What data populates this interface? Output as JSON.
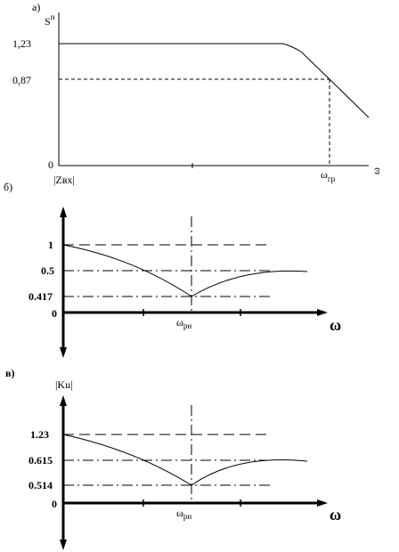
{
  "chart_data": [
    {
      "panel_label": "а)",
      "type": "line",
      "ylabel": "S",
      "ylabel_sup": "н",
      "xlabel": "ω",
      "x_label_below_origin": "|Zвх|",
      "ytick_labels": [
        "1,23",
        "0,87",
        "0"
      ],
      "xtick_labels": [
        "ω",
        "гр"
      ],
      "series": [
        {
          "x": [
            0,
            0.73,
            0.8,
            0.86,
            1.0
          ],
          "values": [
            1.23,
            1.23,
            1.15,
            0.87,
            0.42
          ]
        }
      ],
      "reference_y": [
        0.87
      ],
      "reference_x": [
        0.86
      ],
      "ylim": [
        0,
        1.4
      ]
    },
    {
      "panel_label": "б)",
      "type": "line",
      "xlabel": "ω",
      "ytick_labels": [
        "1",
        "0.5",
        "0.417",
        "0"
      ],
      "xtick_labels": [
        "ω",
        "рн"
      ],
      "series": [
        {
          "x": [
            0,
            0.25,
            0.5,
            0.6,
            0.75,
            1.0
          ],
          "values": [
            1.0,
            0.82,
            0.417,
            0.38,
            0.5,
            0.5
          ]
        }
      ],
      "reference_y": [
        1.0,
        0.5,
        0.417
      ],
      "reference_x": [
        0.5
      ],
      "ylim": [
        0,
        1.3
      ]
    },
    {
      "panel_label": "в)",
      "type": "line",
      "ylabel": "|Ku|",
      "xlabel": "ω",
      "ytick_labels": [
        "1.23",
        "0.615",
        "0.514",
        "0"
      ],
      "xtick_labels": [
        "ω",
        "рн"
      ],
      "series": [
        {
          "x": [
            0,
            0.25,
            0.5,
            0.75,
            1.0
          ],
          "values": [
            1.23,
            1.0,
            0.514,
            0.6,
            0.615
          ]
        }
      ],
      "reference_y": [
        1.23,
        0.615,
        0.514
      ],
      "reference_x": [
        0.5
      ],
      "ylim": [
        0,
        1.5
      ]
    }
  ]
}
